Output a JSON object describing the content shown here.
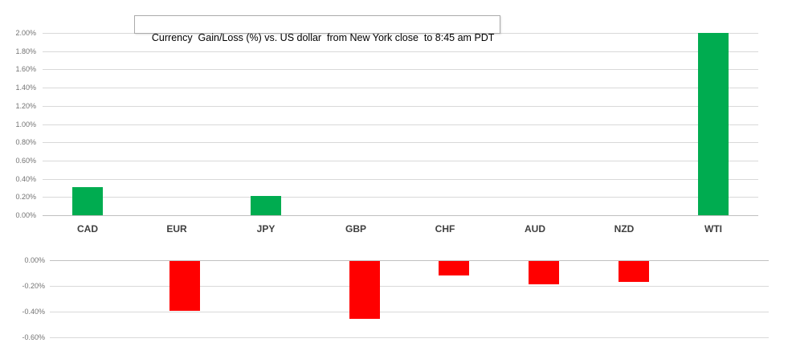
{
  "chart_data": {
    "type": "bar",
    "title": "Currency  Gain/Loss (%) vs. US dollar  from New York close  to 8:45 am PDT",
    "categories": [
      "CAD",
      "EUR",
      "JPY",
      "GBP",
      "CHF",
      "AUD",
      "NZD",
      "WTI"
    ],
    "values": [
      0.31,
      -0.39,
      0.21,
      -0.45,
      -0.11,
      -0.18,
      -0.16,
      2.0
    ],
    "value_unit": "%",
    "legend": "none",
    "panels": {
      "gainers": {
        "position": "top",
        "ylim": [
          0.0,
          2.0
        ],
        "tick_step": 0.2,
        "tick_labels": [
          "2.00%",
          "1.80%",
          "1.60%",
          "1.40%",
          "1.20%",
          "1.00%",
          "0.80%",
          "0.60%",
          "0.40%",
          "0.20%",
          "0.00%"
        ],
        "bar_color": "#00AC50",
        "grid": true
      },
      "losers": {
        "position": "bottom",
        "ylim": [
          -0.6,
          0.0
        ],
        "tick_step": 0.2,
        "tick_labels": [
          "0.00%",
          "-0.20%",
          "-0.40%",
          "-0.60%"
        ],
        "bar_color": "#FF0000",
        "grid": true
      }
    }
  },
  "colors": {
    "positive_bar": "#00AC50",
    "negative_bar": "#FF0000",
    "gridline": "#D9D9D9",
    "axis_line": "#C0C0C0",
    "tick_label": "#737373",
    "category_label": "#3F3F3F",
    "title_text": "#000000",
    "title_border": "#ABABAB",
    "background": "#FFFFFF"
  }
}
